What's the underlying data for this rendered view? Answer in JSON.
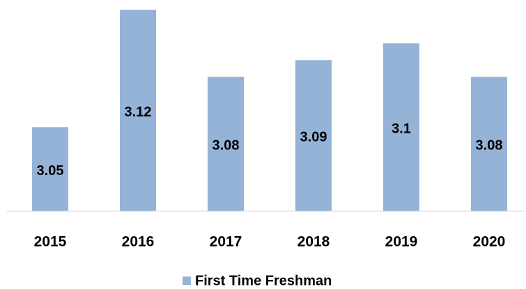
{
  "chart_data": {
    "type": "bar",
    "categories": [
      "2015",
      "2016",
      "2017",
      "2018",
      "2019",
      "2020"
    ],
    "series": [
      {
        "name": "First Time Freshman",
        "color": "#95b3d7",
        "values": [
          3.05,
          3.12,
          3.08,
          3.09,
          3.1,
          3.08
        ]
      }
    ],
    "ylim": [
      3.0,
      3.12
    ],
    "legend": "bottom"
  }
}
